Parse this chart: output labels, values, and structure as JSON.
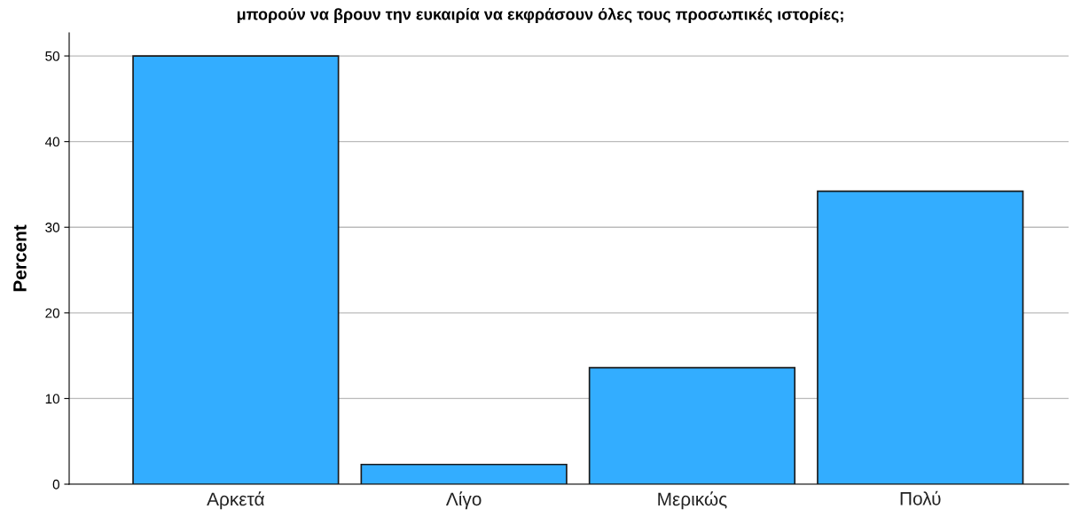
{
  "chart_data": {
    "type": "bar",
    "title": "μπορούν να βρουν την ευκαιρία να εκφράσουν όλες τους προσωπικές ιστορίες;",
    "ylabel": "Percent",
    "categories": [
      "Αρκετά",
      "Λίγο",
      "Μερικώς",
      "Πολύ"
    ],
    "values": [
      50,
      2.3,
      13.6,
      34.2
    ],
    "color": "#33adff",
    "ylim": [
      0,
      52.7
    ],
    "yticks": [
      0,
      10,
      20,
      30,
      40,
      50
    ],
    "grid": "y"
  }
}
